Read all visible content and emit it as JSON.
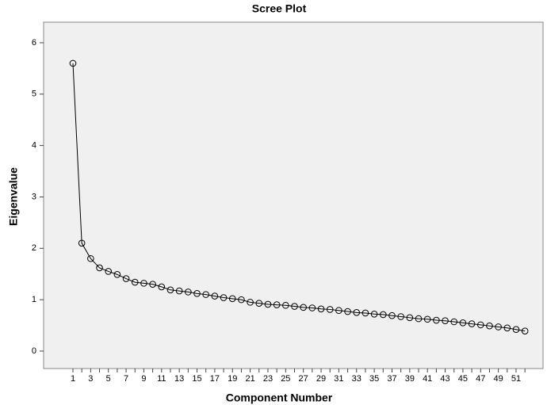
{
  "chart_data": {
    "type": "line",
    "title": "Scree Plot",
    "x_label": "Component Number",
    "y_label": "Eigenvalue",
    "categories": [
      "1",
      null,
      "3",
      null,
      "5",
      null,
      "7",
      null,
      "9",
      null,
      "11",
      null,
      "13",
      null,
      "15",
      null,
      "17",
      null,
      "19",
      null,
      "21",
      null,
      "23",
      null,
      "25",
      null,
      "27",
      null,
      "29",
      null,
      "31",
      null,
      "33",
      null,
      "35",
      null,
      "37",
      null,
      "39",
      null,
      "41",
      null,
      "43",
      null,
      "45",
      null,
      "47",
      null,
      "49",
      null,
      "51",
      null
    ],
    "values": [
      5.6,
      2.1,
      1.8,
      1.62,
      1.55,
      1.49,
      1.41,
      1.34,
      1.32,
      1.3,
      1.25,
      1.19,
      1.17,
      1.15,
      1.12,
      1.1,
      1.07,
      1.04,
      1.02,
      1.0,
      0.95,
      0.93,
      0.91,
      0.9,
      0.89,
      0.87,
      0.85,
      0.84,
      0.82,
      0.81,
      0.79,
      0.77,
      0.75,
      0.74,
      0.72,
      0.71,
      0.69,
      0.67,
      0.65,
      0.63,
      0.62,
      0.6,
      0.59,
      0.57,
      0.55,
      0.53,
      0.51,
      0.49,
      0.47,
      0.45,
      0.42,
      0.39
    ],
    "color": "#000000",
    "ylim": [
      -0.34,
      6.4
    ],
    "yticks": [
      0,
      1,
      2,
      3,
      4,
      5,
      6
    ]
  }
}
